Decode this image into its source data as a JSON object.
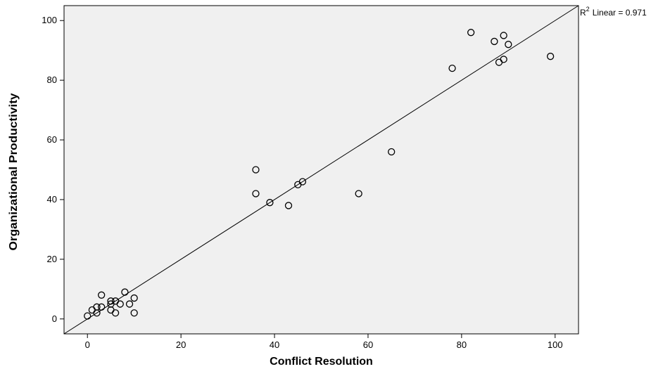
{
  "chart_data": {
    "type": "scatter",
    "title": "",
    "xlabel": "Conflict Resolution",
    "ylabel": "Organizational Productivity",
    "xlim": [
      -5,
      105
    ],
    "ylim": [
      -5,
      105
    ],
    "xticks": [
      0,
      20,
      40,
      60,
      80,
      100
    ],
    "yticks": [
      0,
      20,
      40,
      60,
      80,
      100
    ],
    "grid": false,
    "background": "#f0f0f0",
    "marker": "open-circle",
    "fit_line": {
      "type": "linear",
      "from": [
        -5,
        -5
      ],
      "to": [
        105,
        105
      ],
      "r2_label": "Linear = 0.971",
      "r2_prefix": "R",
      "r2_sup": "2"
    },
    "points": [
      {
        "x": 0,
        "y": 1
      },
      {
        "x": 1,
        "y": 3
      },
      {
        "x": 2,
        "y": 4
      },
      {
        "x": 2,
        "y": 2
      },
      {
        "x": 3,
        "y": 4
      },
      {
        "x": 3,
        "y": 8
      },
      {
        "x": 5,
        "y": 3
      },
      {
        "x": 5,
        "y": 5
      },
      {
        "x": 5,
        "y": 6
      },
      {
        "x": 6,
        "y": 6
      },
      {
        "x": 6,
        "y": 2
      },
      {
        "x": 7,
        "y": 5
      },
      {
        "x": 8,
        "y": 9
      },
      {
        "x": 9,
        "y": 5
      },
      {
        "x": 10,
        "y": 7
      },
      {
        "x": 10,
        "y": 2
      },
      {
        "x": 36,
        "y": 50
      },
      {
        "x": 36,
        "y": 42
      },
      {
        "x": 39,
        "y": 39
      },
      {
        "x": 43,
        "y": 38
      },
      {
        "x": 45,
        "y": 45
      },
      {
        "x": 46,
        "y": 46
      },
      {
        "x": 58,
        "y": 42
      },
      {
        "x": 65,
        "y": 56
      },
      {
        "x": 78,
        "y": 84
      },
      {
        "x": 82,
        "y": 96
      },
      {
        "x": 87,
        "y": 93
      },
      {
        "x": 88,
        "y": 86
      },
      {
        "x": 89,
        "y": 95
      },
      {
        "x": 89,
        "y": 87
      },
      {
        "x": 90,
        "y": 92
      },
      {
        "x": 99,
        "y": 88
      }
    ]
  }
}
